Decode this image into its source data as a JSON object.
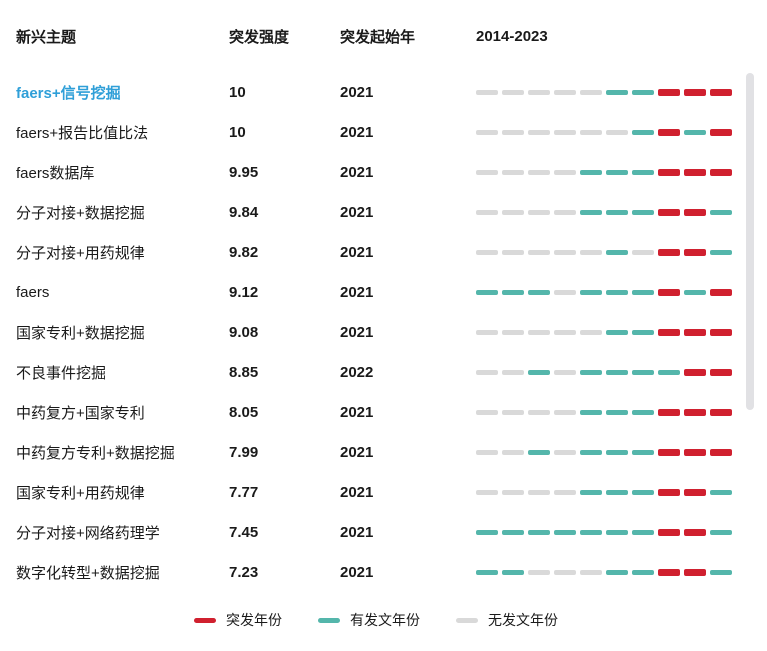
{
  "header": {
    "topic": "新兴主题",
    "strength": "突发强度",
    "start_year": "突发起始年",
    "range": "2014-2023"
  },
  "colors": {
    "burst": "#d0202f",
    "pub": "#54b6ab",
    "none": "#d9d9d9",
    "highlight_link": "#2f9fd8"
  },
  "legend": [
    {
      "type": "burst",
      "label": "突发年份"
    },
    {
      "type": "pub",
      "label": "有发文年份"
    },
    {
      "type": "none",
      "label": "无发文年份"
    }
  ],
  "chart_data": {
    "type": "table",
    "title": "",
    "columns": [
      "新兴主题",
      "突发强度",
      "突发起始年",
      "2014-2023"
    ],
    "years": [
      2014,
      2015,
      2016,
      2017,
      2018,
      2019,
      2020,
      2021,
      2022,
      2023
    ],
    "legend_labels": {
      "burst": "突发年份",
      "pub": "有发文年份",
      "none": "无发文年份"
    },
    "rows": [
      {
        "topic": "faers+信号挖掘",
        "strength": "10",
        "start_year": "2021",
        "highlight": true,
        "timeline": [
          "none",
          "none",
          "none",
          "none",
          "none",
          "pub",
          "pub",
          "burst",
          "burst",
          "burst"
        ]
      },
      {
        "topic": "faers+报告比值比法",
        "strength": "10",
        "start_year": "2021",
        "highlight": false,
        "timeline": [
          "none",
          "none",
          "none",
          "none",
          "none",
          "none",
          "pub",
          "burst",
          "pub",
          "burst"
        ]
      },
      {
        "topic": "faers数据库",
        "strength": "9.95",
        "start_year": "2021",
        "highlight": false,
        "timeline": [
          "none",
          "none",
          "none",
          "none",
          "pub",
          "pub",
          "pub",
          "burst",
          "burst",
          "burst"
        ]
      },
      {
        "topic": "分子对接+数据挖掘",
        "strength": "9.84",
        "start_year": "2021",
        "highlight": false,
        "timeline": [
          "none",
          "none",
          "none",
          "none",
          "pub",
          "pub",
          "pub",
          "burst",
          "burst",
          "pub"
        ]
      },
      {
        "topic": "分子对接+用药规律",
        "strength": "9.82",
        "start_year": "2021",
        "highlight": false,
        "timeline": [
          "none",
          "none",
          "none",
          "none",
          "none",
          "pub",
          "none",
          "burst",
          "burst",
          "pub"
        ]
      },
      {
        "topic": "faers",
        "strength": "9.12",
        "start_year": "2021",
        "highlight": false,
        "timeline": [
          "pub",
          "pub",
          "pub",
          "none",
          "pub",
          "pub",
          "pub",
          "burst",
          "pub",
          "burst"
        ]
      },
      {
        "topic": "国家专利+数据挖掘",
        "strength": "9.08",
        "start_year": "2021",
        "highlight": false,
        "timeline": [
          "none",
          "none",
          "none",
          "none",
          "none",
          "pub",
          "pub",
          "burst",
          "burst",
          "burst"
        ]
      },
      {
        "topic": "不良事件挖掘",
        "strength": "8.85",
        "start_year": "2022",
        "highlight": false,
        "timeline": [
          "none",
          "none",
          "pub",
          "none",
          "pub",
          "pub",
          "pub",
          "pub",
          "burst",
          "burst"
        ]
      },
      {
        "topic": "中药复方+国家专利",
        "strength": "8.05",
        "start_year": "2021",
        "highlight": false,
        "timeline": [
          "none",
          "none",
          "none",
          "none",
          "pub",
          "pub",
          "pub",
          "burst",
          "burst",
          "burst"
        ]
      },
      {
        "topic": "中药复方专利+数据挖掘",
        "strength": "7.99",
        "start_year": "2021",
        "highlight": false,
        "timeline": [
          "none",
          "none",
          "pub",
          "none",
          "pub",
          "pub",
          "pub",
          "burst",
          "burst",
          "burst"
        ]
      },
      {
        "topic": "国家专利+用药规律",
        "strength": "7.77",
        "start_year": "2021",
        "highlight": false,
        "timeline": [
          "none",
          "none",
          "none",
          "none",
          "pub",
          "pub",
          "pub",
          "burst",
          "burst",
          "pub"
        ]
      },
      {
        "topic": "分子对接+网络药理学",
        "strength": "7.45",
        "start_year": "2021",
        "highlight": false,
        "timeline": [
          "pub",
          "pub",
          "pub",
          "pub",
          "pub",
          "pub",
          "pub",
          "burst",
          "burst",
          "pub"
        ]
      },
      {
        "topic": "数字化转型+数据挖掘",
        "strength": "7.23",
        "start_year": "2021",
        "highlight": false,
        "timeline": [
          "pub",
          "pub",
          "none",
          "none",
          "none",
          "pub",
          "pub",
          "burst",
          "burst",
          "pub"
        ]
      }
    ]
  }
}
